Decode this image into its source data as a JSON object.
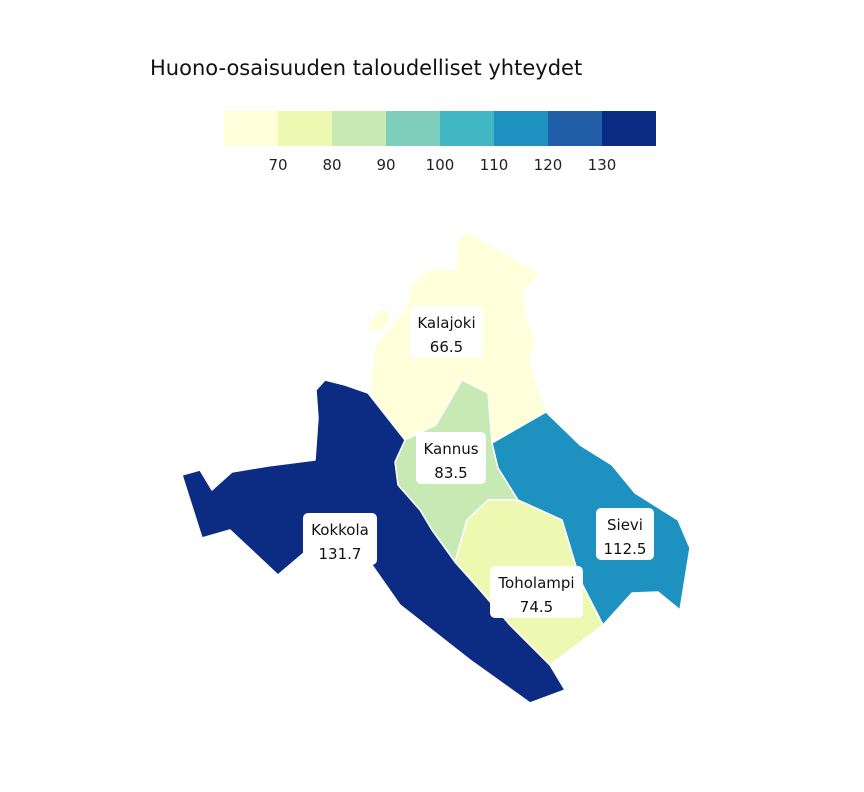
{
  "title": "Huono-osaisuuden taloudelliset yhteydet",
  "legend": {
    "colors": [
      "#ffffd9",
      "#edf8b1",
      "#c7e9b4",
      "#7fcdbb",
      "#41b6c4",
      "#1d91c0",
      "#225ea8",
      "#0c2c84"
    ],
    "breaks": [
      "70",
      "80",
      "90",
      "100",
      "110",
      "120",
      "130"
    ]
  },
  "regions": [
    {
      "id": "kalajoki",
      "name": "Kalajoki",
      "value": "66.5",
      "color": "#ffffd9"
    },
    {
      "id": "kannus",
      "name": "Kannus",
      "value": "83.5",
      "color": "#c7e9b4"
    },
    {
      "id": "kokkola",
      "name": "Kokkola",
      "value": "131.7",
      "color": "#0c2c84"
    },
    {
      "id": "sievi",
      "name": "Sievi",
      "value": "112.5",
      "color": "#1d91c0"
    },
    {
      "id": "toholampi",
      "name": "Toholampi",
      "value": "74.5",
      "color": "#edf8b1"
    }
  ]
}
